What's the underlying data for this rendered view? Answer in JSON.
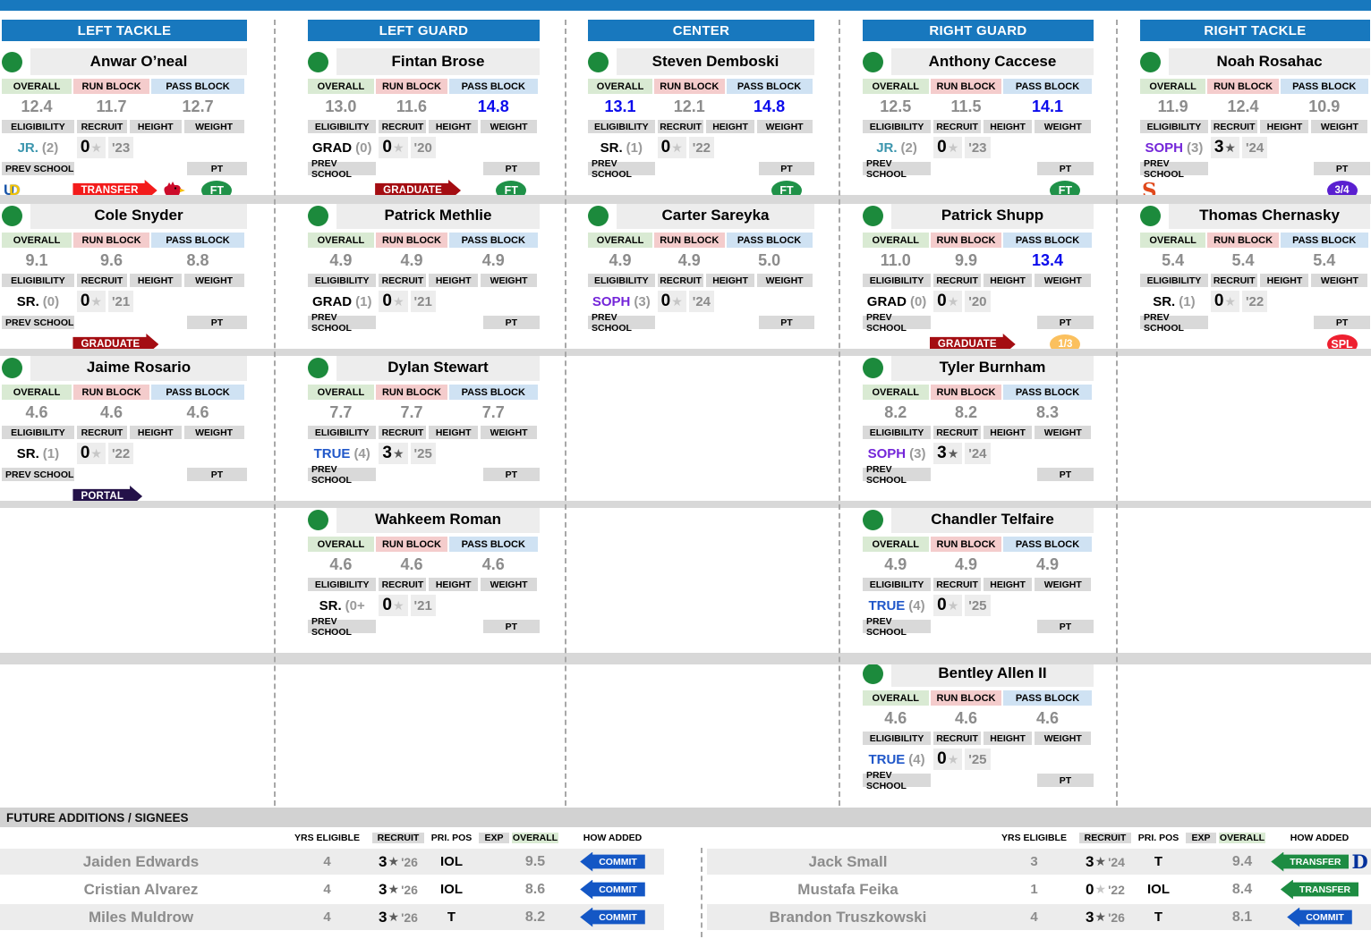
{
  "colors": {
    "top_bar": "#1878be",
    "position_header": "#1878be",
    "value_hot": "#0b0bec",
    "value_gray": "#8c8c8c",
    "overall_bg": "#d9ead3",
    "run_block_bg": "#f4cccc",
    "pass_block_bg": "#cfe2f3",
    "label_bg": "#d9d9d9",
    "band": "#d8d8d8",
    "dot": "#1c8a3c",
    "badge_transfer_red": "#f31b1b",
    "badge_graduate": "#a40d12",
    "badge_portal": "#241249",
    "badge_commit": "#1457c5",
    "badge_transfer": "#1d8c42",
    "pt_ft": "#1f9148",
    "pt_p34": "#5a1fd0",
    "pt_p13": "#fbc05e",
    "pt_spl": "#ee2030",
    "elig_teal": "#3b95ad",
    "elig_purple": "#7426d9",
    "elig_blue": "#2057c9",
    "syracuse_orange": "#e0491c",
    "duke_blue": "#00309b",
    "louisville_red": "#cc0b2a"
  },
  "card_labels": {
    "overall": "OVERALL",
    "run_block": "RUN BLOCK",
    "pass_block": "PASS BLOCK",
    "eligibility": "ELIGIBILITY",
    "recruit": "RECRUIT",
    "height": "HEIGHT",
    "weight": "WEIGHT",
    "prev_school": "PREV SCHOOL",
    "pt": "PT"
  },
  "columns": [
    {
      "title": "LEFT TACKLE",
      "players": [
        {
          "row": 0,
          "name": "Anwar O’neal",
          "overall": "12.4",
          "run": "11.7",
          "pass": "12.7",
          "hot": [
            false,
            false,
            false
          ],
          "elig_class": "JR.",
          "elig_color": "teal",
          "elig_num": "(2)",
          "stars": "0",
          "year": "'23",
          "prev_logo": "delaware",
          "badge": {
            "label": "TRANSFER",
            "kind": "transfer_red"
          },
          "extra_logo": "louisville",
          "pt": {
            "label": "FT",
            "kind": "ft"
          }
        },
        {
          "row": 1,
          "name": "Cole Snyder",
          "overall": "9.1",
          "run": "9.6",
          "pass": "8.8",
          "hot": [
            false,
            false,
            false
          ],
          "elig_class": "SR.",
          "elig_color": "black",
          "elig_num": "(0)",
          "stars": "0",
          "year": "'21",
          "prev_logo": null,
          "badge": {
            "label": "GRADUATE",
            "kind": "graduate"
          },
          "extra_logo": null,
          "pt": null
        },
        {
          "row": 2,
          "name": "Jaime Rosario",
          "overall": "4.6",
          "run": "4.6",
          "pass": "4.6",
          "hot": [
            false,
            false,
            false
          ],
          "elig_class": "SR.",
          "elig_color": "black",
          "elig_num": "(1)",
          "stars": "0",
          "year": "'22",
          "prev_logo": null,
          "badge": {
            "label": "PORTAL",
            "kind": "portal"
          },
          "extra_logo": null,
          "pt": null
        }
      ]
    },
    {
      "title": "LEFT GUARD",
      "players": [
        {
          "row": 0,
          "name": "Fintan Brose",
          "overall": "13.0",
          "run": "11.6",
          "pass": "14.8",
          "hot": [
            false,
            false,
            true
          ],
          "elig_class": "GRAD",
          "elig_color": "black",
          "elig_num": "(0)",
          "stars": "0",
          "year": "'20",
          "prev_logo": null,
          "badge": {
            "label": "GRADUATE",
            "kind": "graduate"
          },
          "extra_logo": null,
          "pt": {
            "label": "FT",
            "kind": "ft"
          }
        },
        {
          "row": 1,
          "name": "Patrick Methlie",
          "overall": "4.9",
          "run": "4.9",
          "pass": "4.9",
          "hot": [
            false,
            false,
            false
          ],
          "elig_class": "GRAD",
          "elig_color": "black",
          "elig_num": "(1)",
          "stars": "0",
          "year": "'21",
          "prev_logo": null,
          "badge": null,
          "extra_logo": null,
          "pt": null
        },
        {
          "row": 2,
          "name": "Dylan Stewart",
          "overall": "7.7",
          "run": "7.7",
          "pass": "7.7",
          "hot": [
            false,
            false,
            false
          ],
          "elig_class": "TRUE",
          "elig_color": "blue",
          "elig_num": "(4)",
          "stars": "3",
          "year": "'25",
          "prev_logo": null,
          "badge": null,
          "extra_logo": null,
          "pt": null
        },
        {
          "row": 3,
          "name": "Wahkeem Roman",
          "overall": "4.6",
          "run": "4.6",
          "pass": "4.6",
          "hot": [
            false,
            false,
            false
          ],
          "elig_class": "SR.",
          "elig_color": "black",
          "elig_num": "(0+",
          "stars": "0",
          "year": "'21",
          "prev_logo": null,
          "badge": null,
          "extra_logo": null,
          "pt": null
        }
      ]
    },
    {
      "title": "CENTER",
      "players": [
        {
          "row": 0,
          "name": "Steven Demboski",
          "overall": "13.1",
          "run": "12.1",
          "pass": "14.8",
          "hot": [
            true,
            false,
            true
          ],
          "elig_class": "SR.",
          "elig_color": "black",
          "elig_num": "(1)",
          "stars": "0",
          "year": "'22",
          "prev_logo": null,
          "badge": null,
          "extra_logo": null,
          "pt": {
            "label": "FT",
            "kind": "ft"
          }
        },
        {
          "row": 1,
          "name": "Carter Sareyka",
          "overall": "4.9",
          "run": "4.9",
          "pass": "5.0",
          "hot": [
            false,
            false,
            false
          ],
          "elig_class": "SOPH",
          "elig_color": "purple",
          "elig_num": "(3)",
          "stars": "0",
          "year": "'24",
          "prev_logo": null,
          "badge": null,
          "extra_logo": null,
          "pt": null
        }
      ]
    },
    {
      "title": "RIGHT GUARD",
      "players": [
        {
          "row": 0,
          "name": "Anthony Caccese",
          "overall": "12.5",
          "run": "11.5",
          "pass": "14.1",
          "hot": [
            false,
            false,
            true
          ],
          "elig_class": "JR.",
          "elig_color": "teal",
          "elig_num": "(2)",
          "stars": "0",
          "year": "'23",
          "prev_logo": null,
          "badge": null,
          "extra_logo": null,
          "pt": {
            "label": "FT",
            "kind": "ft"
          }
        },
        {
          "row": 1,
          "name": "Patrick Shupp",
          "overall": "11.0",
          "run": "9.9",
          "pass": "13.4",
          "hot": [
            false,
            false,
            true
          ],
          "elig_class": "GRAD",
          "elig_color": "black",
          "elig_num": "(0)",
          "stars": "0",
          "year": "'20",
          "prev_logo": null,
          "badge": {
            "label": "GRADUATE",
            "kind": "graduate"
          },
          "extra_logo": null,
          "pt": {
            "label": "1/3",
            "kind": "p13"
          }
        },
        {
          "row": 2,
          "name": "Tyler Burnham",
          "overall": "8.2",
          "run": "8.2",
          "pass": "8.3",
          "hot": [
            false,
            false,
            false
          ],
          "elig_class": "SOPH",
          "elig_color": "purple",
          "elig_num": "(3)",
          "stars": "3",
          "year": "'24",
          "prev_logo": null,
          "badge": null,
          "extra_logo": null,
          "pt": null
        },
        {
          "row": 3,
          "name": "Chandler Telfaire",
          "overall": "4.9",
          "run": "4.9",
          "pass": "4.9",
          "hot": [
            false,
            false,
            false
          ],
          "elig_class": "TRUE",
          "elig_color": "blue",
          "elig_num": "(4)",
          "stars": "0",
          "year": "'25",
          "prev_logo": null,
          "badge": null,
          "extra_logo": null,
          "pt": null
        },
        {
          "row": 4,
          "name": "Bentley Allen II",
          "overall": "4.6",
          "run": "4.6",
          "pass": "4.6",
          "hot": [
            false,
            false,
            false
          ],
          "elig_class": "TRUE",
          "elig_color": "blue",
          "elig_num": "(4)",
          "stars": "0",
          "year": "'25",
          "prev_logo": null,
          "badge": null,
          "extra_logo": null,
          "pt": null
        }
      ]
    },
    {
      "title": "RIGHT TACKLE",
      "players": [
        {
          "row": 0,
          "name": "Noah Rosahac",
          "overall": "11.9",
          "run": "12.4",
          "pass": "10.9",
          "hot": [
            false,
            false,
            false
          ],
          "elig_class": "SOPH",
          "elig_color": "purple",
          "elig_num": "(3)",
          "stars": "3",
          "year": "'24",
          "prev_logo": "syracuse",
          "badge": null,
          "extra_logo": null,
          "pt": {
            "label": "3/4",
            "kind": "p34"
          }
        },
        {
          "row": 1,
          "name": "Thomas Chernasky",
          "overall": "5.4",
          "run": "5.4",
          "pass": "5.4",
          "hot": [
            false,
            false,
            false
          ],
          "elig_class": "SR.",
          "elig_color": "black",
          "elig_num": "(1)",
          "stars": "0",
          "year": "'22",
          "prev_logo": null,
          "badge": null,
          "extra_logo": null,
          "pt": {
            "label": "SPL",
            "kind": "spl"
          }
        }
      ]
    }
  ],
  "future": {
    "title": "FUTURE ADDITIONS / SIGNEES",
    "headers": {
      "yrs": "YRS ELIGIBLE",
      "recruit": "RECRUIT",
      "pripos": "PRI. POS",
      "exp": "EXP",
      "overall": "OVERALL",
      "how": "HOW ADDED"
    },
    "left_rows": [
      {
        "name": "Jaiden Edwards",
        "yrs": "4",
        "stars": "3",
        "year": "'26",
        "pripos": "IOL",
        "exp": "",
        "overall": "9.5",
        "how": "COMMIT",
        "how_kind": "commit",
        "logo": null
      },
      {
        "name": "Cristian Alvarez",
        "yrs": "4",
        "stars": "3",
        "year": "'26",
        "pripos": "IOL",
        "exp": "",
        "overall": "8.6",
        "how": "COMMIT",
        "how_kind": "commit",
        "logo": null
      },
      {
        "name": "Miles Muldrow",
        "yrs": "4",
        "stars": "3",
        "year": "'26",
        "pripos": "T",
        "exp": "",
        "overall": "8.2",
        "how": "COMMIT",
        "how_kind": "commit",
        "logo": null
      }
    ],
    "right_rows": [
      {
        "name": "Jack Small",
        "yrs": "3",
        "stars": "3",
        "year": "'24",
        "pripos": "T",
        "exp": "",
        "overall": "9.4",
        "how": "TRANSFER",
        "how_kind": "transfer",
        "logo": "duke"
      },
      {
        "name": "Mustafa Feika",
        "yrs": "1",
        "stars": "0",
        "year": "'22",
        "pripos": "IOL",
        "exp": "",
        "overall": "8.4",
        "how": "TRANSFER",
        "how_kind": "transfer",
        "logo": null
      },
      {
        "name": "Brandon Truszkowski",
        "yrs": "4",
        "stars": "3",
        "year": "'26",
        "pripos": "T",
        "exp": "",
        "overall": "8.1",
        "how": "COMMIT",
        "how_kind": "commit",
        "logo": null
      }
    ]
  }
}
